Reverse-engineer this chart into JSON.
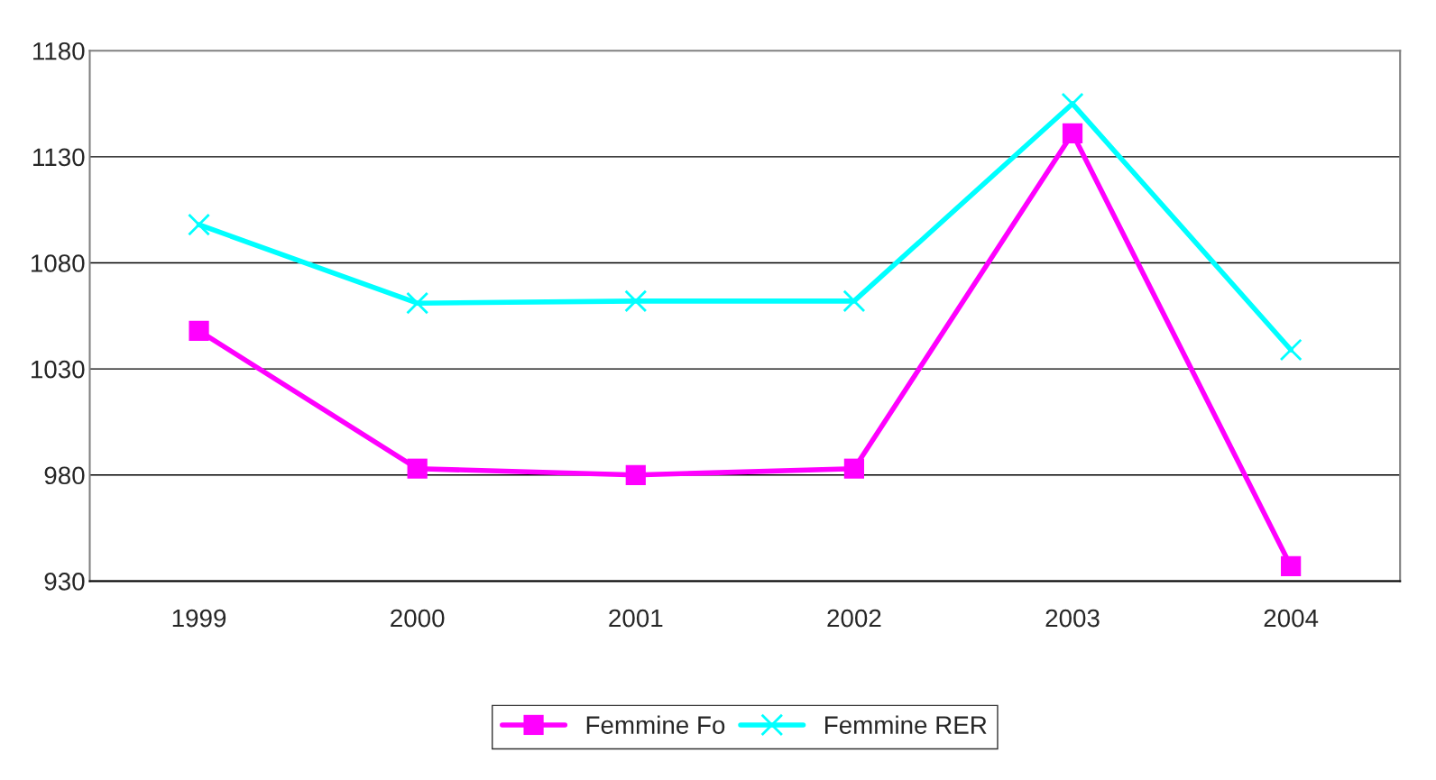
{
  "chart_data": {
    "type": "line",
    "categories": [
      "1999",
      "2000",
      "2001",
      "2002",
      "2003",
      "2004"
    ],
    "series": [
      {
        "name": "Femmine Fo",
        "color": "#ff00ff",
        "marker": "square",
        "values": [
          1048,
          983,
          980,
          983,
          1141,
          937
        ]
      },
      {
        "name": "Femmine RER",
        "color": "#00ffff",
        "marker": "cross",
        "values": [
          1098,
          1061,
          1062,
          1062,
          1155,
          1039
        ]
      }
    ],
    "ylim": [
      930,
      1180
    ],
    "yticks": [
      930,
      980,
      1030,
      1080,
      1130,
      1180
    ],
    "grid": "y",
    "legend": "bottom"
  }
}
